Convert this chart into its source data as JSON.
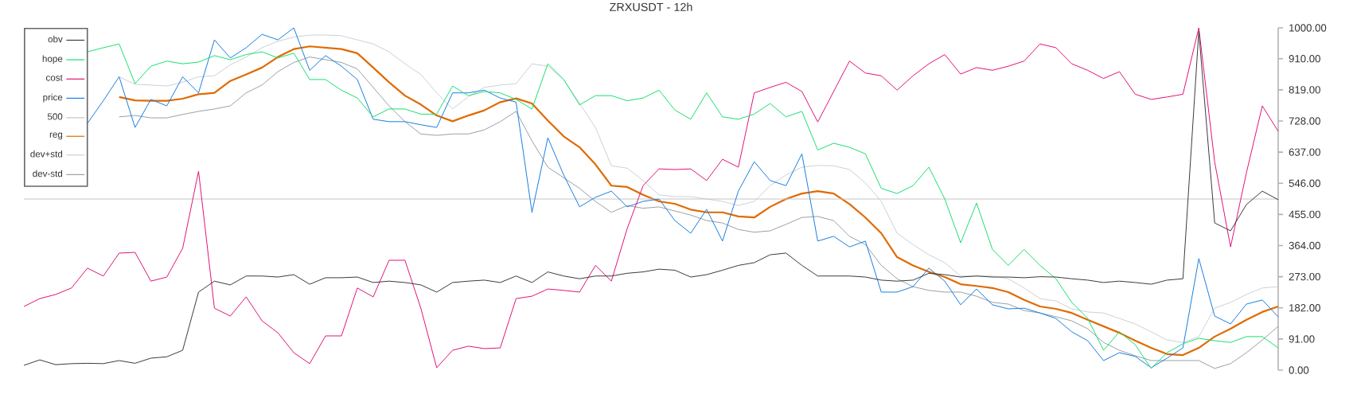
{
  "chart_data": {
    "type": "line",
    "title": "ZRXUSDT - 12h",
    "tick_labels": "y",
    "legend": "top left",
    "marker": "none",
    "categories": [
      null,
      null,
      null,
      null,
      null,
      null,
      null,
      null,
      null,
      null,
      null,
      null,
      null,
      null,
      null,
      null,
      null,
      null,
      null,
      null,
      null,
      null,
      null,
      null,
      null,
      null,
      null,
      null,
      null,
      null,
      null,
      null,
      null,
      null,
      null,
      null,
      null,
      null,
      null,
      null,
      null,
      null,
      null,
      null,
      null,
      null,
      null,
      null,
      null,
      null,
      null,
      null,
      null,
      null,
      null,
      null,
      null,
      null,
      null,
      null,
      null,
      null,
      null,
      null,
      null,
      null,
      null,
      null,
      null,
      null,
      null,
      null,
      null,
      null,
      null,
      null,
      null,
      null,
      null,
      null
    ],
    "ylim": [
      0,
      1000
    ],
    "yticks": [
      {
        "value": 0,
        "label": "0.00"
      },
      {
        "value": 91,
        "label": "91.00"
      },
      {
        "value": 182,
        "label": "182.00"
      },
      {
        "value": 273,
        "label": "273.00"
      },
      {
        "value": 364,
        "label": "364.00"
      },
      {
        "value": 455,
        "label": "455.00"
      },
      {
        "value": 546,
        "label": "546.00"
      },
      {
        "value": 637,
        "label": "637.00"
      },
      {
        "value": 728,
        "label": "728.00"
      },
      {
        "value": 819,
        "label": "819.00"
      },
      {
        "value": 910,
        "label": "910.00"
      },
      {
        "value": 1000,
        "label": "1000.00"
      }
    ],
    "series": [
      {
        "name": "obv",
        "color": "#3c3c3c",
        "values": [
          14,
          30,
          16,
          19,
          20,
          19,
          28,
          20,
          35,
          39,
          58,
          228,
          260,
          249,
          275,
          275,
          272,
          279,
          251,
          270,
          270,
          272,
          256,
          260,
          256,
          249,
          228,
          256,
          260,
          263,
          256,
          275,
          256,
          287,
          275,
          267,
          275,
          275,
          283,
          287,
          295,
          292,
          272,
          279,
          292,
          306,
          314,
          337,
          342,
          306,
          275,
          275,
          275,
          272,
          263,
          260,
          263,
          283,
          279,
          272,
          275,
          272,
          272,
          270,
          273,
          272,
          267,
          263,
          256,
          260,
          256,
          251,
          263,
          267,
          990,
          430,
          407,
          484,
          523,
          498
        ]
      },
      {
        "name": "hope",
        "color": "#19e06f",
        "values": [
          null,
          null,
          null,
          null,
          930,
          942,
          953,
          837,
          888,
          903,
          895,
          900,
          919,
          907,
          922,
          930,
          912,
          926,
          849,
          849,
          818,
          795,
          740,
          763,
          763,
          748,
          748,
          830,
          802,
          814,
          810,
          791,
          763,
          895,
          849,
          775,
          802,
          802,
          787,
          795,
          818,
          760,
          733,
          810,
          740,
          733,
          748,
          779,
          740,
          756,
          643,
          663,
          651,
          632,
          531,
          516,
          539,
          593,
          500,
          372,
          488,
          353,
          306,
          353,
          306,
          267,
          198,
          151,
          58,
          112,
          74,
          5,
          51,
          77,
          93,
          86,
          81,
          98,
          98,
          65
        ]
      },
      {
        "name": "cost",
        "color": "#e2137a",
        "values": [
          186,
          209,
          221,
          240,
          298,
          275,
          342,
          344,
          260,
          272,
          356,
          581,
          181,
          158,
          214,
          144,
          109,
          51,
          19,
          100,
          100,
          240,
          214,
          321,
          321,
          181,
          7,
          58,
          70,
          63,
          65,
          209,
          216,
          237,
          233,
          228,
          306,
          260,
          414,
          539,
          588,
          586,
          588,
          554,
          616,
          593,
          810,
          826,
          841,
          814,
          725,
          814,
          903,
          868,
          860,
          818,
          860,
          895,
          922,
          865,
          884,
          876,
          888,
          903,
          953,
          942,
          895,
          876,
          852,
          872,
          806,
          791,
          798,
          806,
          1000,
          608,
          360,
          577,
          772,
          698
        ]
      },
      {
        "name": "price",
        "color": "#1a7fe0",
        "values": [
          null,
          null,
          null,
          null,
          721,
          787,
          857,
          709,
          791,
          772,
          857,
          810,
          965,
          912,
          942,
          981,
          965,
          1000,
          876,
          919,
          888,
          849,
          733,
          726,
          726,
          717,
          709,
          810,
          810,
          818,
          795,
          783,
          461,
          679,
          570,
          477,
          505,
          523,
          477,
          493,
          500,
          437,
          400,
          470,
          377,
          523,
          609,
          554,
          539,
          632,
          377,
          391,
          360,
          377,
          228,
          228,
          244,
          298,
          260,
          191,
          237,
          191,
          179,
          181,
          167,
          151,
          112,
          86,
          28,
          51,
          40,
          7,
          35,
          65,
          326,
          158,
          135,
          193,
          205,
          156
        ]
      },
      {
        "name": "500",
        "color": "#c4c4c4",
        "values": [
          500,
          500,
          500,
          500,
          500,
          500,
          500,
          500,
          500,
          500,
          500,
          500,
          500,
          500,
          500,
          500,
          500,
          500,
          500,
          500,
          500,
          500,
          500,
          500,
          500,
          500,
          500,
          500,
          500,
          500,
          500,
          500,
          500,
          500,
          500,
          500,
          500,
          500,
          500,
          500,
          500,
          500,
          500,
          500,
          500,
          500,
          500,
          500,
          500,
          500,
          500,
          500,
          500,
          500,
          500,
          500,
          500,
          500,
          500,
          500,
          500,
          500,
          500,
          500,
          500,
          500,
          500,
          500,
          500,
          500,
          500,
          500,
          500,
          500,
          500,
          500,
          500,
          500,
          500,
          500
        ]
      },
      {
        "name": "reg",
        "color": "#e06a00",
        "values": [
          null,
          null,
          null,
          null,
          null,
          null,
          798,
          788,
          787,
          787,
          793,
          806,
          810,
          845,
          864,
          884,
          915,
          938,
          946,
          942,
          938,
          926,
          884,
          841,
          802,
          776,
          744,
          727,
          744,
          759,
          783,
          794,
          779,
          729,
          683,
          651,
          601,
          539,
          535,
          512,
          493,
          486,
          469,
          461,
          461,
          449,
          446,
          477,
          500,
          516,
          523,
          516,
          485,
          446,
          400,
          330,
          306,
          287,
          272,
          251,
          246,
          240,
          228,
          205,
          186,
          179,
          167,
          147,
          128,
          109,
          86,
          65,
          47,
          44,
          65,
          98,
          121,
          147,
          170,
          186
        ]
      },
      {
        "name": "dev+std",
        "color": "#cdd1d6",
        "values": [
          null,
          null,
          null,
          null,
          null,
          null,
          857,
          835,
          833,
          830,
          841,
          857,
          860,
          892,
          915,
          942,
          961,
          973,
          979,
          979,
          977,
          965,
          953,
          930,
          895,
          864,
          810,
          763,
          799,
          826,
          833,
          837,
          895,
          888,
          849,
          779,
          709,
          597,
          590,
          554,
          512,
          507,
          507,
          500,
          493,
          481,
          493,
          539,
          570,
          593,
          598,
          597,
          586,
          547,
          493,
          400,
          367,
          337,
          314,
          275,
          275,
          275,
          267,
          240,
          209,
          202,
          179,
          170,
          167,
          151,
          135,
          112,
          88,
          81,
          98,
          181,
          198,
          221,
          240,
          244
        ]
      },
      {
        "name": "dev-std",
        "color": "#9aa0a8",
        "values": [
          null,
          null,
          null,
          null,
          null,
          null,
          740,
          744,
          737,
          737,
          747,
          756,
          763,
          772,
          810,
          833,
          872,
          899,
          915,
          907,
          899,
          880,
          826,
          772,
          726,
          690,
          686,
          690,
          690,
          702,
          726,
          756,
          670,
          593,
          562,
          531,
          493,
          461,
          481,
          473,
          477,
          465,
          453,
          437,
          430,
          411,
          403,
          407,
          426,
          446,
          449,
          437,
          391,
          367,
          306,
          267,
          244,
          233,
          228,
          228,
          216,
          198,
          193,
          174,
          167,
          156,
          144,
          121,
          81,
          58,
          42,
          28,
          28,
          28,
          28,
          5,
          19,
          51,
          88,
          128
        ]
      }
    ]
  }
}
